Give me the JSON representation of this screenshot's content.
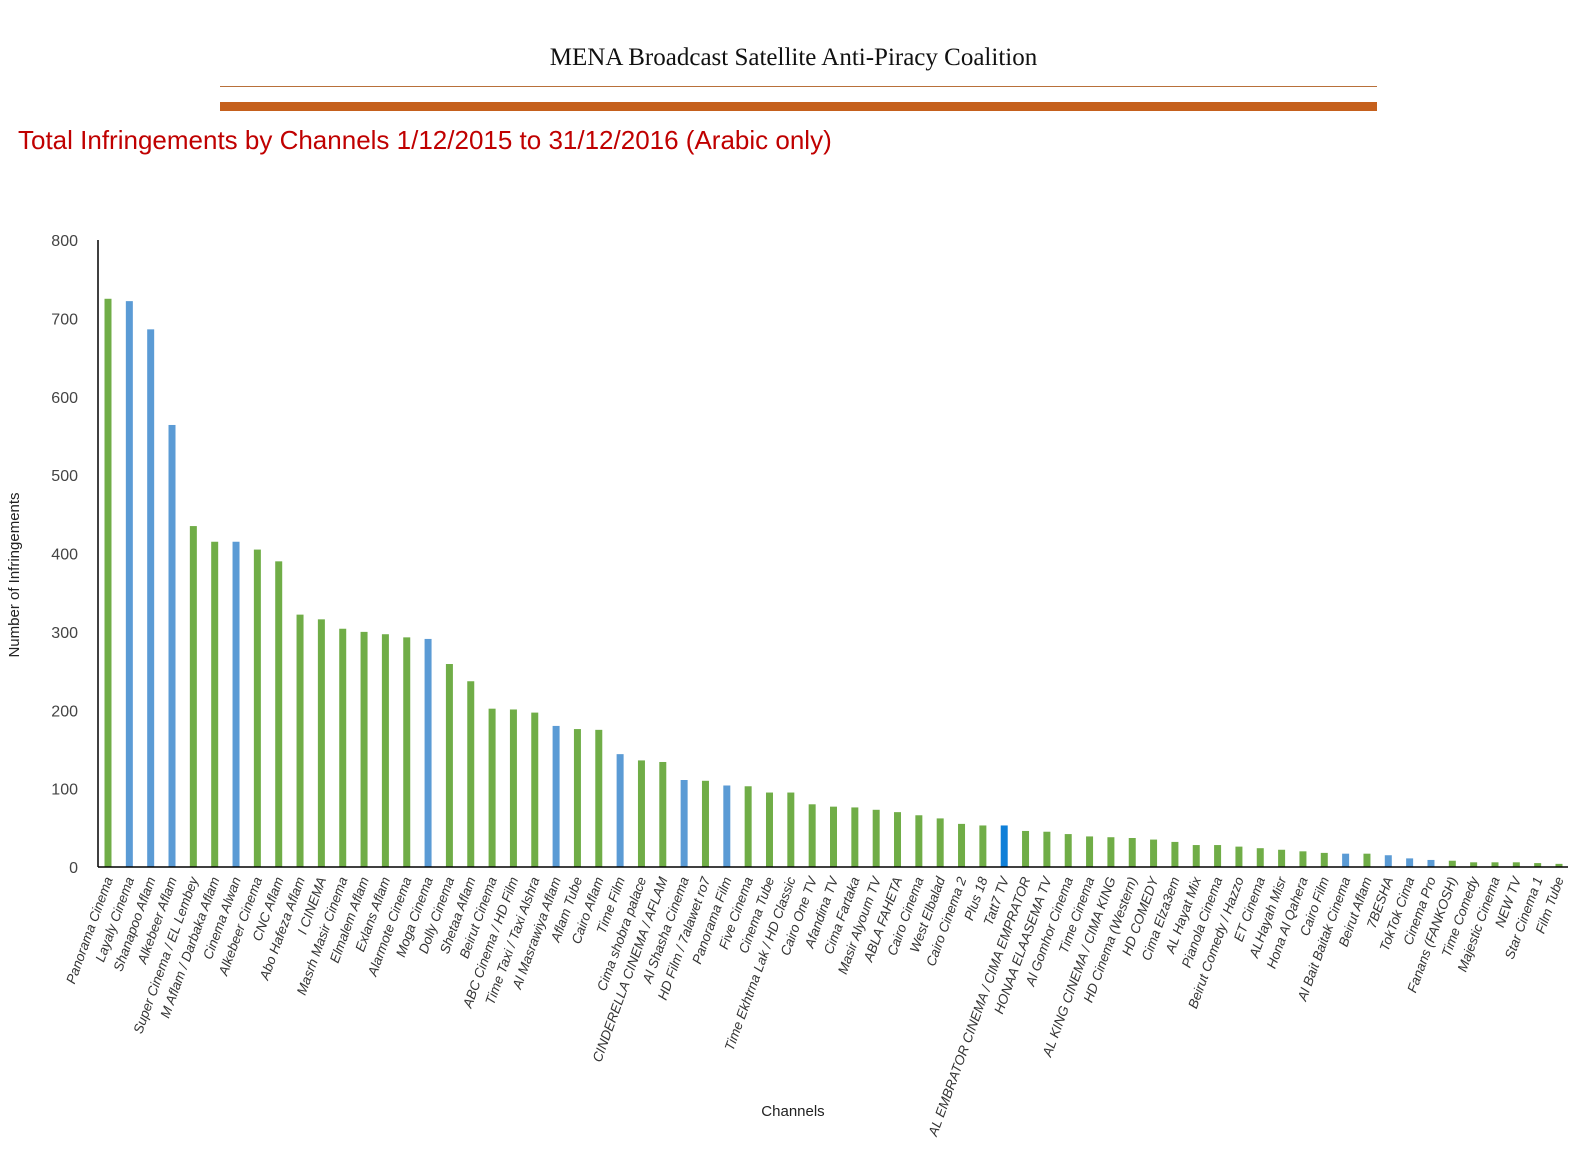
{
  "header": {
    "title": "MENA Broadcast Satellite  Anti-Piracy Coalition"
  },
  "colors": {
    "rule_thin": "#b8703a",
    "rule_thick": "#c5601d",
    "subtitle": "#c00000",
    "green": "#70ad47",
    "blue": "#5b9bd5",
    "highlight_blue": "#0f7fd8"
  },
  "chart_data": {
    "type": "bar",
    "title": "Total Infringements by Channels 1/12/2015 to 31/12/2016 (Arabic only)",
    "xlabel": "Channels",
    "ylabel": "Number of Infringements",
    "ylim": [
      0,
      800
    ],
    "yticks": [
      0,
      100,
      200,
      300,
      400,
      500,
      600,
      700,
      800
    ],
    "grid": false,
    "categories": [
      "Panorama Cinema",
      "Layaly Cinema",
      "Shanapoo Aflam",
      "Alkebeer Aflam",
      "Super Cinema / EL Lembey",
      "M Aflam  / Darbaka Aflam",
      "Cinema Alwan",
      "Alkebeer Cinema",
      "CNC Aflam",
      "Abo Hafeza Aflam",
      "I CINEMA",
      "Masrh Masir Cinema",
      "Elmalem Aflam",
      "Exlans Aflam",
      "Alarmote Cinema",
      "Moga Cinema",
      "Dolly Cinema",
      "Shetaa Aflam",
      "Beirut Cinema",
      "ABC Cinema / HD Film",
      "Time Taxi / Taxi Alshra",
      "Al Masrawiya Aflam",
      "Aflam Tube",
      "Cairo Aflam",
      "Time Film",
      "Cima shobra palace",
      "CINDERELLA CINEMA / AFLAM",
      "Al Shasha Cinema",
      "HD Film / 7alawet ro7",
      "Panorama Film",
      "Five Cinema",
      "Cinema Tube",
      "Time Ekhtrna Lak / HD Classic",
      "Cairo One TV",
      "Afandina TV",
      "Cima Fartaka",
      "Masir Alyoum TV",
      "ABLA FAHETA",
      "Cairo Cinema",
      "West Elbalad",
      "Cairo Cinema 2",
      "Plus 18",
      "Tatt7 TV",
      "AL EMBRATOR CINEMA / CIMA EMPRATOR",
      "HONAA ELAASEMA TV",
      "Al Gomhor Cinema",
      "Time Cinema",
      "AL KING CINEMA / CIMA KING",
      "HD Cinema (Western)",
      "HD COMEDY",
      "Cima Elza3em",
      "AL Hayat Mix",
      "Pianola Cinema",
      "Beirut Comedy / Hazzo",
      "ET Cinema",
      "ALHayah Misr",
      "Hona Al Qahera",
      "Cairo Film",
      "Al Bait Baitak Cinema",
      "Beirut Aflam",
      "7BESHA",
      "TokTok Cima",
      "Cinema Pro",
      "Fanans (FANKOSH)",
      "Time Comedy",
      "Majestic Cinema",
      "NEW TV",
      "Star Cinema 1",
      "Film Tube"
    ],
    "values": [
      725,
      722,
      686,
      564,
      435,
      415,
      415,
      405,
      390,
      322,
      316,
      304,
      300,
      297,
      293,
      291,
      259,
      237,
      202,
      201,
      197,
      180,
      176,
      175,
      144,
      136,
      134,
      111,
      110,
      104,
      103,
      95,
      95,
      80,
      77,
      76,
      73,
      70,
      66,
      62,
      55,
      53,
      53,
      46,
      45,
      42,
      39,
      38,
      37,
      35,
      32,
      28,
      28,
      26,
      24,
      22,
      20,
      18,
      17,
      17,
      15,
      11,
      9,
      8,
      6,
      6,
      6,
      5,
      4
    ],
    "bar_colors": [
      "green",
      "blue",
      "blue",
      "blue",
      "green",
      "green",
      "blue",
      "green",
      "green",
      "green",
      "green",
      "green",
      "green",
      "green",
      "green",
      "blue",
      "green",
      "green",
      "green",
      "green",
      "green",
      "blue",
      "green",
      "green",
      "blue",
      "green",
      "green",
      "blue",
      "green",
      "blue",
      "green",
      "green",
      "green",
      "green",
      "green",
      "green",
      "green",
      "green",
      "green",
      "green",
      "green",
      "green",
      "highlight_blue",
      "green",
      "green",
      "green",
      "green",
      "green",
      "green",
      "green",
      "green",
      "green",
      "green",
      "green",
      "green",
      "green",
      "green",
      "green",
      "blue",
      "green",
      "blue",
      "blue",
      "blue",
      "green",
      "green",
      "green",
      "green",
      "green",
      "green"
    ]
  }
}
